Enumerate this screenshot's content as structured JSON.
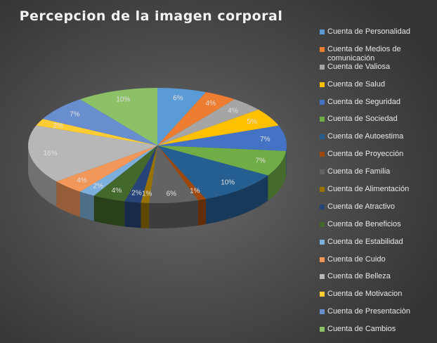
{
  "chart_data": {
    "type": "pie",
    "title": "Percepcion de la imagen corporal",
    "legend_position": "right",
    "slices": [
      {
        "name": "Cuenta de Personalidad",
        "value": 6,
        "label": "6%",
        "color": "#5b9bd5"
      },
      {
        "name": "Cuenta de Medios de comunicación",
        "value": 4,
        "label": "4%",
        "color": "#ed7d31"
      },
      {
        "name": "Cuenta de Valiosa",
        "value": 4,
        "label": "4%",
        "color": "#a5a5a5"
      },
      {
        "name": "Cuenta de Salud",
        "value": 5,
        "label": "5%",
        "color": "#ffc000"
      },
      {
        "name": "Cuenta de Seguridad",
        "value": 7,
        "label": "7%",
        "color": "#4472c4"
      },
      {
        "name": "Cuenta de Sociedad",
        "value": 7,
        "label": "7%",
        "color": "#70ad47"
      },
      {
        "name": "Cuenta de Autoestima",
        "value": 10,
        "label": "10%",
        "color": "#255e91"
      },
      {
        "name": "Cuenta de Proyección",
        "value": 1,
        "label": "1%",
        "color": "#9e480e"
      },
      {
        "name": "Cuenta de Familia",
        "value": 6,
        "label": "6%",
        "color": "#636363"
      },
      {
        "name": "Cuenta de Alimentación",
        "value": 1,
        "label": "1%",
        "color": "#997300"
      },
      {
        "name": "Cuenta de Atractivo",
        "value": 2,
        "label": "2%",
        "color": "#264478"
      },
      {
        "name": "Cuenta de Beneficios",
        "value": 4,
        "label": "4%",
        "color": "#43682b"
      },
      {
        "name": "Cuenta de Estabilidad",
        "value": 2,
        "label": "2%",
        "color": "#7cafdd"
      },
      {
        "name": "Cuenta de Cuido",
        "value": 4,
        "label": "4%",
        "color": "#f1975a"
      },
      {
        "name": "Cuenta de Belleza",
        "value": 16,
        "label": "16%",
        "color": "#b7b7b7"
      },
      {
        "name": "Cuenta de Motivacion",
        "value": 2,
        "label": "2%",
        "color": "#ffcd33"
      },
      {
        "name": "Cuenta de Presentaciòn",
        "value": 7,
        "label": "7%",
        "color": "#698ed0"
      },
      {
        "name": "Cuenta de Cambios",
        "value": 10,
        "label": "10%",
        "color": "#8cc168"
      }
    ]
  }
}
